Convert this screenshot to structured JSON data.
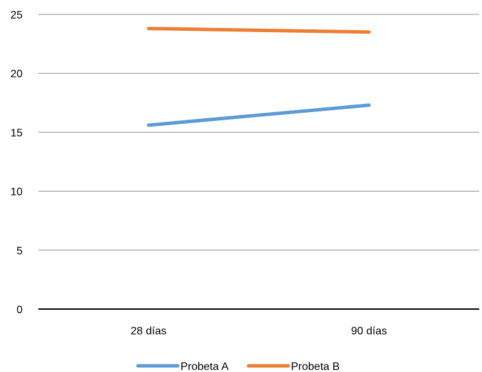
{
  "chart_data": {
    "type": "line",
    "categories": [
      "28 días",
      "90 días"
    ],
    "series": [
      {
        "name": "Probeta A",
        "values": [
          15.6,
          17.3
        ],
        "color": "#5B9BD5"
      },
      {
        "name": "Probeta B",
        "values": [
          23.8,
          23.5
        ],
        "color": "#ED7D31"
      }
    ],
    "y_ticks": [
      "0",
      "5",
      "10",
      "15",
      "20",
      "25"
    ],
    "ylim": [
      0,
      25
    ],
    "title": "",
    "xlabel": "",
    "ylabel": "",
    "grid": true,
    "legend_position": "bottom"
  }
}
